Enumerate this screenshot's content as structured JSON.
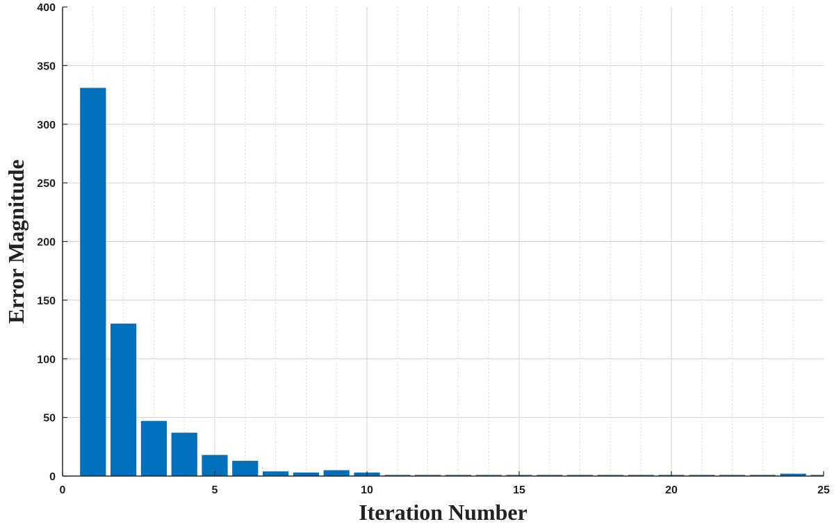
{
  "chart_data": {
    "type": "bar",
    "xlabel": "Iteration Number",
    "ylabel": "Error Magnitude",
    "xlim": [
      0,
      25
    ],
    "ylim": [
      0,
      400
    ],
    "grid": true,
    "minor_grid": true,
    "x_ticks": [
      0,
      5,
      10,
      15,
      20,
      25
    ],
    "y_ticks": [
      0,
      50,
      100,
      150,
      200,
      250,
      300,
      350,
      400
    ],
    "bar_width": 0.85,
    "bar_color": "#0072bd",
    "x": [
      1,
      2,
      3,
      4,
      5,
      6,
      7,
      8,
      9,
      10,
      11,
      12,
      13,
      14,
      15,
      16,
      17,
      18,
      19,
      20,
      21,
      22,
      23,
      24,
      25
    ],
    "values": [
      331,
      130,
      47,
      37,
      18,
      13,
      4,
      3,
      5,
      3,
      1,
      1,
      1,
      1,
      1,
      1,
      1,
      1,
      1,
      1,
      1,
      1,
      1,
      2,
      1
    ]
  }
}
